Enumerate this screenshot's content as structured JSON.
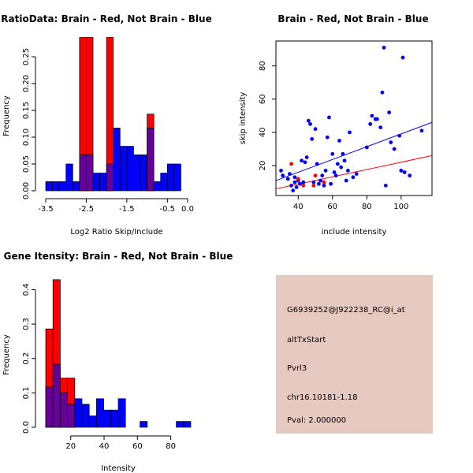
{
  "colors": {
    "red": "#ff0000",
    "blue": "#0000ff",
    "overlap": "#660099",
    "info_bg": "#e6c9c1",
    "pval": "#aa0000"
  },
  "chart_data": [
    {
      "id": "ratio",
      "type": "bar",
      "title": "RatioData: Brain - Red, Not Brain - Blue",
      "xlabel": "Log2 Ratio Skip/Include",
      "ylabel": "Frequency",
      "xlim": [
        -3.5,
        0.0
      ],
      "ylim": [
        0,
        0.3
      ],
      "xticks": [
        -3.5,
        -2.5,
        -1.5,
        -0.5,
        0.0
      ],
      "xtick_labels": [
        "-3.5",
        "-2.5",
        "-1.5",
        "-0.5",
        "0.0"
      ],
      "yticks": [
        0,
        0.05,
        0.1,
        0.15,
        0.2,
        0.25
      ],
      "ytick_labels": [
        "0.00",
        "0.05",
        "0.10",
        "0.15",
        "0.20",
        "0.25"
      ],
      "bin_width": 0.1667,
      "bin_start": -3.5,
      "series": [
        {
          "name": "Not Brain",
          "color": "blue",
          "values": [
            0.017,
            0.017,
            0.017,
            0.05,
            0.017,
            0.067,
            0.067,
            0.033,
            0.033,
            0.05,
            0.117,
            0.083,
            0.083,
            0.067,
            0.067,
            0.117,
            0.017,
            0.033,
            0.05,
            0.05
          ]
        },
        {
          "name": "Brain",
          "color": "red",
          "values": [
            0,
            0,
            0,
            0,
            0,
            0.286,
            0.286,
            0,
            0,
            0.286,
            0,
            0,
            0,
            0,
            0,
            0.143,
            0,
            0,
            0,
            0
          ]
        }
      ]
    },
    {
      "id": "scatter",
      "type": "scatter",
      "title": "Brain - Red, Not Brain - Blue",
      "xlabel": "include intensity",
      "ylabel": "skip intensity",
      "xlim": [
        27,
        118
      ],
      "ylim": [
        2,
        95
      ],
      "xticks": [
        40,
        60,
        80,
        100
      ],
      "xtick_labels": [
        "40",
        "60",
        "80",
        "100"
      ],
      "yticks": [
        20,
        40,
        60,
        80
      ],
      "ytick_labels": [
        "20",
        "40",
        "60",
        "80"
      ],
      "series": [
        {
          "name": "Not Brain",
          "color": "blue",
          "x": [
            30,
            31,
            34,
            35,
            36,
            37,
            38,
            38,
            39,
            40,
            41,
            42,
            43,
            44,
            45,
            46,
            47,
            48,
            49,
            50,
            51,
            52,
            53,
            54,
            55,
            56,
            57,
            58,
            59,
            60,
            61,
            62,
            63,
            64,
            65,
            66,
            67,
            68,
            69,
            70,
            72,
            74,
            80,
            82,
            83,
            85,
            86,
            88,
            89,
            90,
            91,
            93,
            94,
            96,
            99,
            100,
            101,
            102,
            105,
            112
          ],
          "y": [
            17,
            14,
            12,
            15,
            8,
            5,
            13,
            10,
            7,
            11,
            9,
            23,
            10,
            22,
            25,
            47,
            45,
            36,
            10,
            42,
            21,
            9,
            11,
            14,
            8,
            17,
            37,
            49,
            9,
            27,
            16,
            14,
            21,
            35,
            19,
            27,
            23,
            11,
            17,
            40,
            13,
            15,
            31,
            45,
            50,
            48,
            48,
            43,
            64,
            91,
            8,
            52,
            34,
            30,
            38,
            17,
            85,
            16,
            14,
            41
          ]
        },
        {
          "name": "Brain",
          "color": "red",
          "x": [
            36,
            40,
            43,
            49,
            50,
            55
          ],
          "y": [
            21,
            12,
            8,
            8,
            14,
            10
          ]
        }
      ],
      "fit_lines": [
        {
          "color": "blue",
          "x": [
            27,
            118
          ],
          "y": [
            11,
            46
          ]
        },
        {
          "color": "red",
          "x": [
            27,
            118
          ],
          "y": [
            6,
            26
          ]
        }
      ]
    },
    {
      "id": "intensity",
      "type": "bar",
      "title": "Gene Itensity: Brain - Red, Not Brain - Blue",
      "xlabel": "Intensity",
      "ylabel": "Frequency",
      "xlim": [
        5,
        92
      ],
      "ylim": [
        0,
        0.44
      ],
      "xticks": [
        20,
        40,
        60,
        80
      ],
      "xtick_labels": [
        "20",
        "40",
        "60",
        "80"
      ],
      "yticks": [
        0,
        0.1,
        0.2,
        0.3,
        0.4
      ],
      "ytick_labels": [
        "0.0",
        "0.1",
        "0.2",
        "0.3",
        "0.4"
      ],
      "bin_width": 4.35,
      "bin_start": 5,
      "series": [
        {
          "name": "Not Brain",
          "color": "blue",
          "values": [
            0.117,
            0.183,
            0.1,
            0.067,
            0.083,
            0.067,
            0.033,
            0.083,
            0.05,
            0.05,
            0.083,
            0,
            0,
            0.017,
            0,
            0,
            0,
            0,
            0.017,
            0.017
          ]
        },
        {
          "name": "Brain",
          "color": "red",
          "values": [
            0.286,
            0.429,
            0.143,
            0.143,
            0,
            0,
            0,
            0,
            0,
            0,
            0,
            0,
            0,
            0,
            0,
            0,
            0,
            0,
            0,
            0
          ]
        }
      ]
    }
  ],
  "info_box": {
    "probe": "G6939252@J922238_RC@i_at",
    "event": "altTxStart",
    "gene": "Pvrl3",
    "location": "chr16.10181-1.18",
    "pval": "Pval: 2.000000"
  }
}
